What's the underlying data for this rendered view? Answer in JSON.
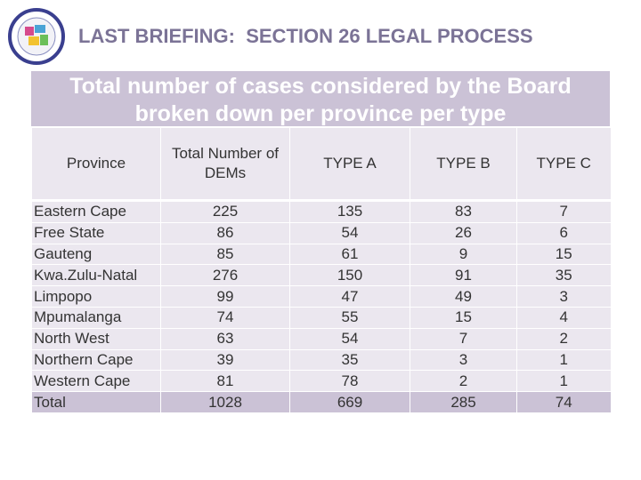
{
  "header": {
    "title": "LAST BRIEFING:  SECTION 26 LEGAL PROCESS"
  },
  "table": {
    "title": "Total number of cases considered by the Board broken down per province per type",
    "columns": [
      "Province",
      "Total Number of DEMs",
      "TYPE A",
      "TYPE B",
      "TYPE C"
    ],
    "rows": [
      [
        "Eastern Cape",
        225,
        135,
        83,
        7
      ],
      [
        "Free State",
        86,
        54,
        26,
        6
      ],
      [
        "Gauteng",
        85,
        61,
        9,
        15
      ],
      [
        "Kwa.Zulu-Natal",
        276,
        150,
        91,
        35
      ],
      [
        "Limpopo",
        99,
        47,
        49,
        3
      ],
      [
        "Mpumalanga",
        74,
        55,
        15,
        4
      ],
      [
        "North West",
        63,
        54,
        7,
        2
      ],
      [
        "Northern Cape",
        39,
        35,
        3,
        1
      ],
      [
        "Western Cape",
        81,
        78,
        2,
        1
      ],
      [
        "Total",
        1028,
        669,
        285,
        74
      ]
    ]
  }
}
